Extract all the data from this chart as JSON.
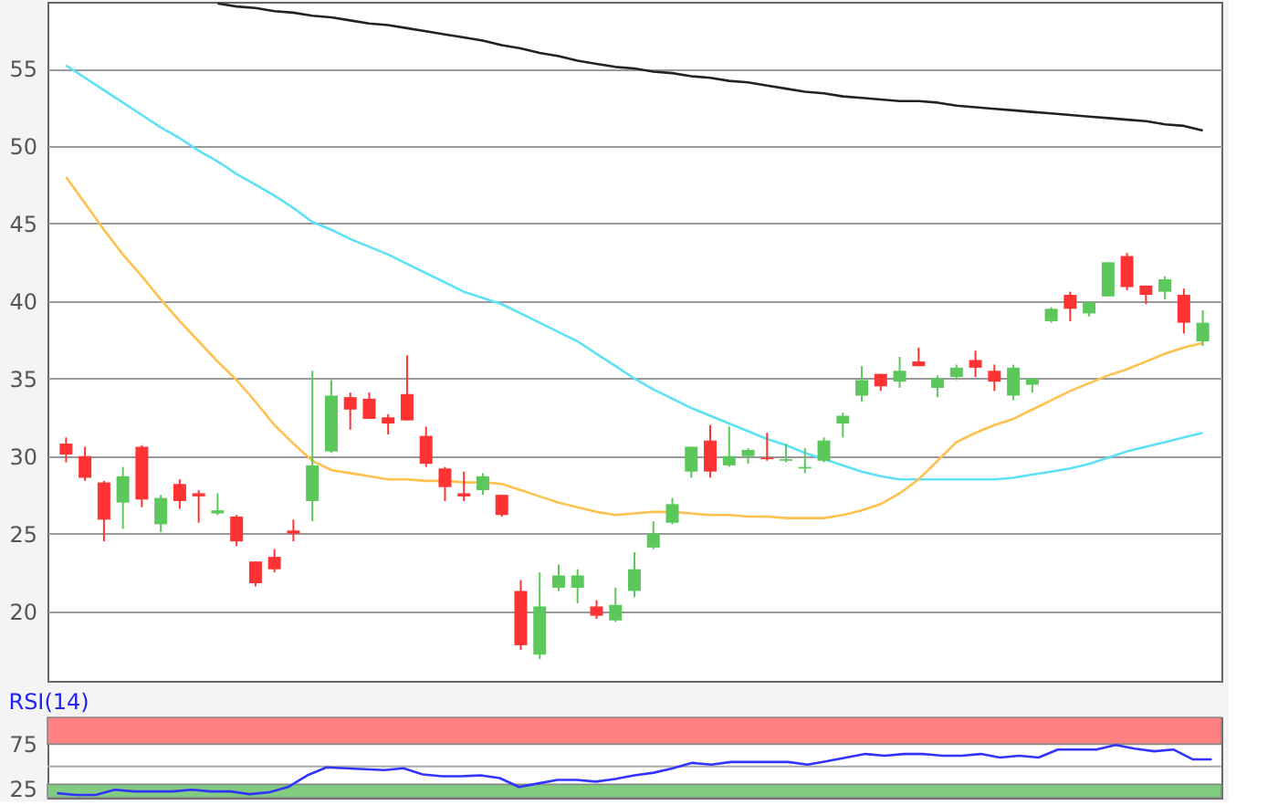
{
  "chart_data": [
    {
      "type": "candlestick",
      "categories": [
        null,
        null,
        null,
        null,
        null,
        null,
        null,
        null,
        null,
        null,
        null,
        null,
        null,
        null,
        null,
        null,
        null,
        null,
        null,
        null,
        null,
        null,
        null,
        null,
        null,
        null,
        null,
        null,
        null,
        null,
        null,
        null,
        null,
        null,
        null,
        null,
        null,
        null,
        null,
        null,
        null,
        null,
        null,
        null,
        null,
        null,
        null,
        null,
        null,
        null,
        null,
        null,
        null,
        null,
        null,
        null,
        null,
        null,
        null,
        null,
        null
      ],
      "ohlc": [
        [
          30.8,
          31.2,
          29.6,
          30.1
        ],
        [
          30.0,
          30.6,
          28.4,
          28.6
        ],
        [
          28.3,
          28.4,
          24.5,
          25.9
        ],
        [
          27.0,
          29.3,
          25.3,
          28.7
        ],
        [
          30.6,
          30.7,
          26.7,
          27.2
        ],
        [
          25.6,
          27.5,
          25.1,
          27.3
        ],
        [
          28.2,
          28.5,
          26.6,
          27.1
        ],
        [
          27.6,
          27.8,
          25.7,
          27.4
        ],
        [
          26.3,
          27.6,
          26.2,
          26.5
        ],
        [
          26.1,
          26.2,
          24.2,
          24.5
        ],
        [
          23.2,
          23.2,
          21.6,
          21.8
        ],
        [
          23.5,
          24.0,
          22.5,
          22.7
        ],
        [
          25.2,
          25.9,
          24.5,
          25.0
        ],
        [
          27.1,
          35.5,
          25.8,
          29.4
        ],
        [
          30.3,
          34.9,
          30.2,
          33.9
        ],
        [
          33.8,
          34.1,
          31.7,
          33.0
        ],
        [
          33.7,
          34.1,
          32.4,
          32.4
        ],
        [
          32.5,
          32.7,
          31.4,
          32.1
        ],
        [
          34.0,
          36.5,
          32.3,
          32.3
        ],
        [
          31.3,
          31.9,
          29.3,
          29.5
        ],
        [
          29.2,
          29.3,
          27.1,
          28.0
        ],
        [
          27.6,
          29.0,
          27.1,
          27.4
        ],
        [
          27.8,
          28.9,
          27.5,
          28.7
        ],
        [
          27.5,
          27.5,
          26.1,
          26.2
        ],
        [
          21.3,
          22.0,
          17.5,
          17.8
        ],
        [
          17.2,
          22.5,
          16.9,
          20.3
        ],
        [
          21.5,
          23.0,
          21.3,
          22.3
        ],
        [
          21.5,
          22.7,
          20.5,
          22.3
        ],
        [
          20.3,
          20.7,
          19.5,
          19.7
        ],
        [
          19.4,
          21.5,
          19.3,
          20.4
        ],
        [
          21.3,
          23.8,
          20.9,
          22.7
        ],
        [
          24.1,
          25.8,
          24.0,
          25.0
        ],
        [
          25.7,
          27.3,
          25.6,
          26.9
        ],
        [
          29.0,
          30.6,
          28.6,
          30.6
        ],
        [
          31.0,
          32.0,
          28.6,
          29.0
        ],
        [
          29.4,
          31.9,
          29.3,
          30.0
        ],
        [
          30.0,
          30.5,
          29.5,
          30.4
        ],
        [
          29.9,
          31.5,
          29.7,
          29.8
        ],
        [
          29.7,
          30.8,
          29.6,
          29.8
        ],
        [
          29.2,
          30.5,
          28.9,
          29.3
        ],
        [
          29.7,
          31.2,
          29.6,
          31.0
        ],
        [
          32.1,
          32.8,
          31.2,
          32.6
        ],
        [
          33.9,
          35.8,
          33.5,
          34.9
        ],
        [
          35.3,
          35.3,
          34.2,
          34.5
        ],
        [
          34.8,
          36.4,
          34.4,
          35.5
        ],
        [
          36.1,
          37.0,
          35.8,
          35.8
        ],
        [
          34.4,
          35.2,
          33.8,
          35.0
        ],
        [
          35.1,
          35.9,
          34.9,
          35.7
        ],
        [
          36.2,
          36.8,
          35.1,
          35.7
        ],
        [
          35.5,
          35.9,
          34.2,
          34.8
        ],
        [
          33.9,
          35.9,
          33.6,
          35.7
        ],
        [
          34.6,
          35.0,
          34.1,
          35.0
        ],
        [
          38.7,
          39.6,
          38.6,
          39.5
        ],
        [
          40.4,
          40.6,
          38.7,
          39.5
        ],
        [
          39.2,
          40.0,
          39.0,
          39.9
        ],
        [
          40.3,
          42.5,
          40.3,
          42.5
        ],
        [
          42.9,
          43.1,
          40.7,
          40.9
        ],
        [
          41.0,
          41.0,
          39.8,
          40.4
        ],
        [
          40.6,
          41.6,
          40.1,
          41.4
        ],
        [
          40.4,
          40.8,
          37.9,
          38.6
        ],
        [
          37.4,
          39.4,
          37.1,
          38.6
        ]
      ],
      "colors": [
        "#ff3333",
        "#ff3333",
        "#ff3333",
        "#5cc85c",
        "#ff3333",
        "#5cc85c",
        "#ff3333",
        "#ff3333",
        "#5cc85c",
        "#ff3333",
        "#ff3333",
        "#ff3333",
        "#ff3333",
        "#5cc85c",
        "#5cc85c",
        "#ff3333",
        "#ff3333",
        "#ff3333",
        "#ff3333",
        "#ff3333",
        "#ff3333",
        "#ff3333",
        "#5cc85c",
        "#ff3333",
        "#ff3333",
        "#5cc85c",
        "#5cc85c",
        "#5cc85c",
        "#ff3333",
        "#5cc85c",
        "#5cc85c",
        "#5cc85c",
        "#5cc85c",
        "#5cc85c",
        "#ff3333",
        "#5cc85c",
        "#5cc85c",
        "#ff3333",
        "#5cc85c",
        "#5cc85c",
        "#5cc85c",
        "#5cc85c",
        "#5cc85c",
        "#ff3333",
        "#5cc85c",
        "#ff3333",
        "#5cc85c",
        "#5cc85c",
        "#ff3333",
        "#ff3333",
        "#5cc85c",
        "#5cc85c",
        "#5cc85c",
        "#ff3333",
        "#5cc85c",
        "#5cc85c",
        "#ff3333",
        "#ff3333",
        "#5cc85c",
        "#ff3333",
        "#5cc85c"
      ],
      "series": [
        {
          "type": "line",
          "color": "#222222",
          "values": [
            null,
            null,
            null,
            null,
            null,
            null,
            null,
            null,
            59.2,
            59.0,
            58.9,
            58.7,
            58.6,
            58.4,
            58.3,
            58.1,
            57.9,
            57.8,
            57.6,
            57.4,
            57.2,
            57.0,
            56.8,
            56.5,
            56.3,
            56.0,
            55.8,
            55.5,
            55.3,
            55.1,
            55.0,
            54.8,
            54.7,
            54.5,
            54.4,
            54.2,
            54.1,
            53.9,
            53.7,
            53.5,
            53.4,
            53.2,
            53.1,
            53.0,
            52.9,
            52.9,
            52.8,
            52.6,
            52.5,
            52.4,
            52.3,
            52.2,
            52.1,
            52.0,
            51.9,
            51.8,
            51.7,
            51.6,
            51.4,
            51.3,
            51.0
          ]
        },
        {
          "type": "line",
          "color": "#5ce1f5",
          "values": [
            55.2,
            54.4,
            53.6,
            52.8,
            52.0,
            51.2,
            50.5,
            49.7,
            49.0,
            48.2,
            47.5,
            46.8,
            46.0,
            45.1,
            44.6,
            44.0,
            43.5,
            43.0,
            42.4,
            41.8,
            41.2,
            40.6,
            40.2,
            39.8,
            39.2,
            38.6,
            38.0,
            37.4,
            36.6,
            35.8,
            35.0,
            34.3,
            33.7,
            33.1,
            32.6,
            32.1,
            31.6,
            31.1,
            30.7,
            30.2,
            29.8,
            29.4,
            29.0,
            28.7,
            28.5,
            28.5,
            28.5,
            28.5,
            28.5,
            28.5,
            28.6,
            28.8,
            29.0,
            29.2,
            29.5,
            29.9,
            30.3,
            30.6,
            30.9,
            31.2,
            31.5
          ]
        },
        {
          "type": "line",
          "color": "#ffc04d",
          "values": [
            48.0,
            46.3,
            44.6,
            43.0,
            41.6,
            40.1,
            38.7,
            37.4,
            36.1,
            34.9,
            33.5,
            32.0,
            30.8,
            29.7,
            29.1,
            28.9,
            28.7,
            28.5,
            28.5,
            28.4,
            28.4,
            28.3,
            28.3,
            28.2,
            27.8,
            27.4,
            27.0,
            26.7,
            26.4,
            26.2,
            26.3,
            26.4,
            26.4,
            26.3,
            26.2,
            26.2,
            26.1,
            26.1,
            26.0,
            26.0,
            26.0,
            26.2,
            26.5,
            26.9,
            27.6,
            28.5,
            29.7,
            30.9,
            31.5,
            32.0,
            32.4,
            33.0,
            33.6,
            34.2,
            34.7,
            35.2,
            35.6,
            36.1,
            36.6,
            37.0,
            37.3
          ]
        }
      ],
      "ylim": [
        15.5,
        59.3
      ],
      "yticks": [
        20,
        25,
        30,
        35,
        40,
        45,
        50,
        55
      ],
      "grid": "y",
      "tick_labels": "y"
    },
    {
      "type": "line",
      "title": "RSI(14)",
      "categories": [
        null,
        null,
        null,
        null,
        null,
        null,
        null,
        null,
        null,
        null,
        null,
        null,
        null,
        null,
        null,
        null,
        null,
        null,
        null,
        null,
        null,
        null,
        null,
        null,
        null,
        null,
        null,
        null,
        null,
        null,
        null,
        null,
        null,
        null,
        null,
        null,
        null,
        null,
        null,
        null,
        null,
        null,
        null,
        null,
        null,
        null,
        null,
        null,
        null,
        null,
        null,
        null,
        null,
        null,
        null,
        null,
        null,
        null,
        null,
        null,
        null
      ],
      "series": [
        {
          "color": "#3333ff",
          "values": [
            20,
            18,
            18,
            24,
            22,
            22,
            22,
            24,
            22,
            22,
            19,
            21,
            27,
            40,
            49,
            48,
            47,
            46,
            48,
            41,
            39,
            39,
            40,
            37,
            27,
            31,
            35,
            35,
            33,
            36,
            40,
            43,
            48,
            54,
            52,
            55,
            55,
            55,
            55,
            52,
            56,
            60,
            64,
            62,
            64,
            64,
            62,
            62,
            64,
            60,
            62,
            60,
            69,
            69,
            69,
            74,
            70,
            67,
            69,
            58,
            58
          ]
        }
      ],
      "bands": [
        {
          "axis": "y",
          "from": 75,
          "to": 105,
          "color": "#ff8080"
        },
        {
          "axis": "y",
          "from": 15,
          "to": 30,
          "color": "#80cc80"
        }
      ],
      "ref_lines": [
        {
          "axis": "y",
          "value": 50,
          "color": "#aaaaaa"
        }
      ],
      "ylim": [
        15,
        105
      ],
      "yticks": [
        25,
        75
      ],
      "tick_labels": "y"
    }
  ]
}
